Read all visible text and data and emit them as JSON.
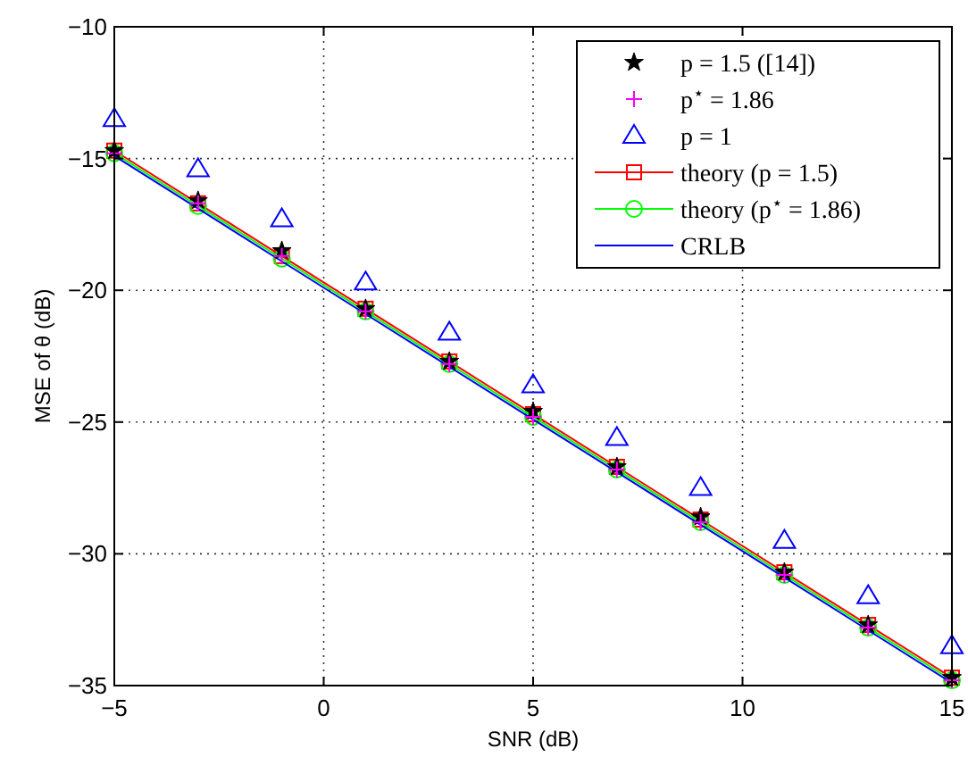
{
  "chart_data": {
    "type": "line",
    "xlabel": "SNR (dB)",
    "ylabel": "MSE of θ (dB)",
    "x": [
      -5,
      -3,
      -1,
      1,
      3,
      5,
      7,
      9,
      11,
      13,
      15
    ],
    "xlim": [
      -5,
      15
    ],
    "xticks": [
      -5,
      0,
      5,
      10,
      15
    ],
    "ylim": [
      -35,
      -10
    ],
    "yticks": [
      -35,
      -30,
      -25,
      -20,
      -15,
      -10
    ],
    "grid": true,
    "legend": "top right",
    "line_style": "solid",
    "series": [
      {
        "name": "p = 1.5 ([14])",
        "type": "scatter",
        "marker": "star",
        "color": "#000000",
        "values": [
          -14.7,
          -16.6,
          -18.5,
          -20.7,
          -22.7,
          -24.6,
          -26.7,
          -28.6,
          -30.7,
          -32.7,
          -34.7
        ]
      },
      {
        "name": "p$^{⋆}$ = 1.86",
        "type": "scatter",
        "marker": "cross",
        "color": "#ff00ff",
        "values": [
          -14.8,
          -16.7,
          -18.7,
          -20.8,
          -22.8,
          -24.8,
          -26.8,
          -28.8,
          -30.8,
          -32.8,
          -34.8
        ]
      },
      {
        "name": "p = 1",
        "type": "scatter",
        "marker": "triangle",
        "color": "#0000ff",
        "values": [
          -13.5,
          -15.4,
          -17.3,
          -19.7,
          -21.6,
          -23.6,
          -25.6,
          -27.5,
          -29.5,
          -31.6,
          -33.5
        ]
      },
      {
        "name": "theory (p = 1.5)",
        "marker": "square",
        "color": "#ff0000",
        "values": [
          -14.7,
          -16.7,
          -18.7,
          -20.7,
          -22.7,
          -24.7,
          -26.7,
          -28.7,
          -30.7,
          -32.7,
          -34.7
        ]
      },
      {
        "name": "theory (p$^{⋆}$ = 1.86)",
        "marker": "circle",
        "color": "#00ff00",
        "values": [
          -14.8,
          -16.8,
          -18.8,
          -20.8,
          -22.8,
          -24.8,
          -26.8,
          -28.8,
          -30.8,
          -32.8,
          -34.8
        ]
      },
      {
        "name": "CRLB",
        "marker": "none",
        "color": "#0000ff",
        "values": [
          -14.9,
          -16.9,
          -18.9,
          -20.9,
          -22.9,
          -24.9,
          -26.9,
          -28.9,
          -30.9,
          -32.9,
          -34.9
        ]
      }
    ]
  }
}
